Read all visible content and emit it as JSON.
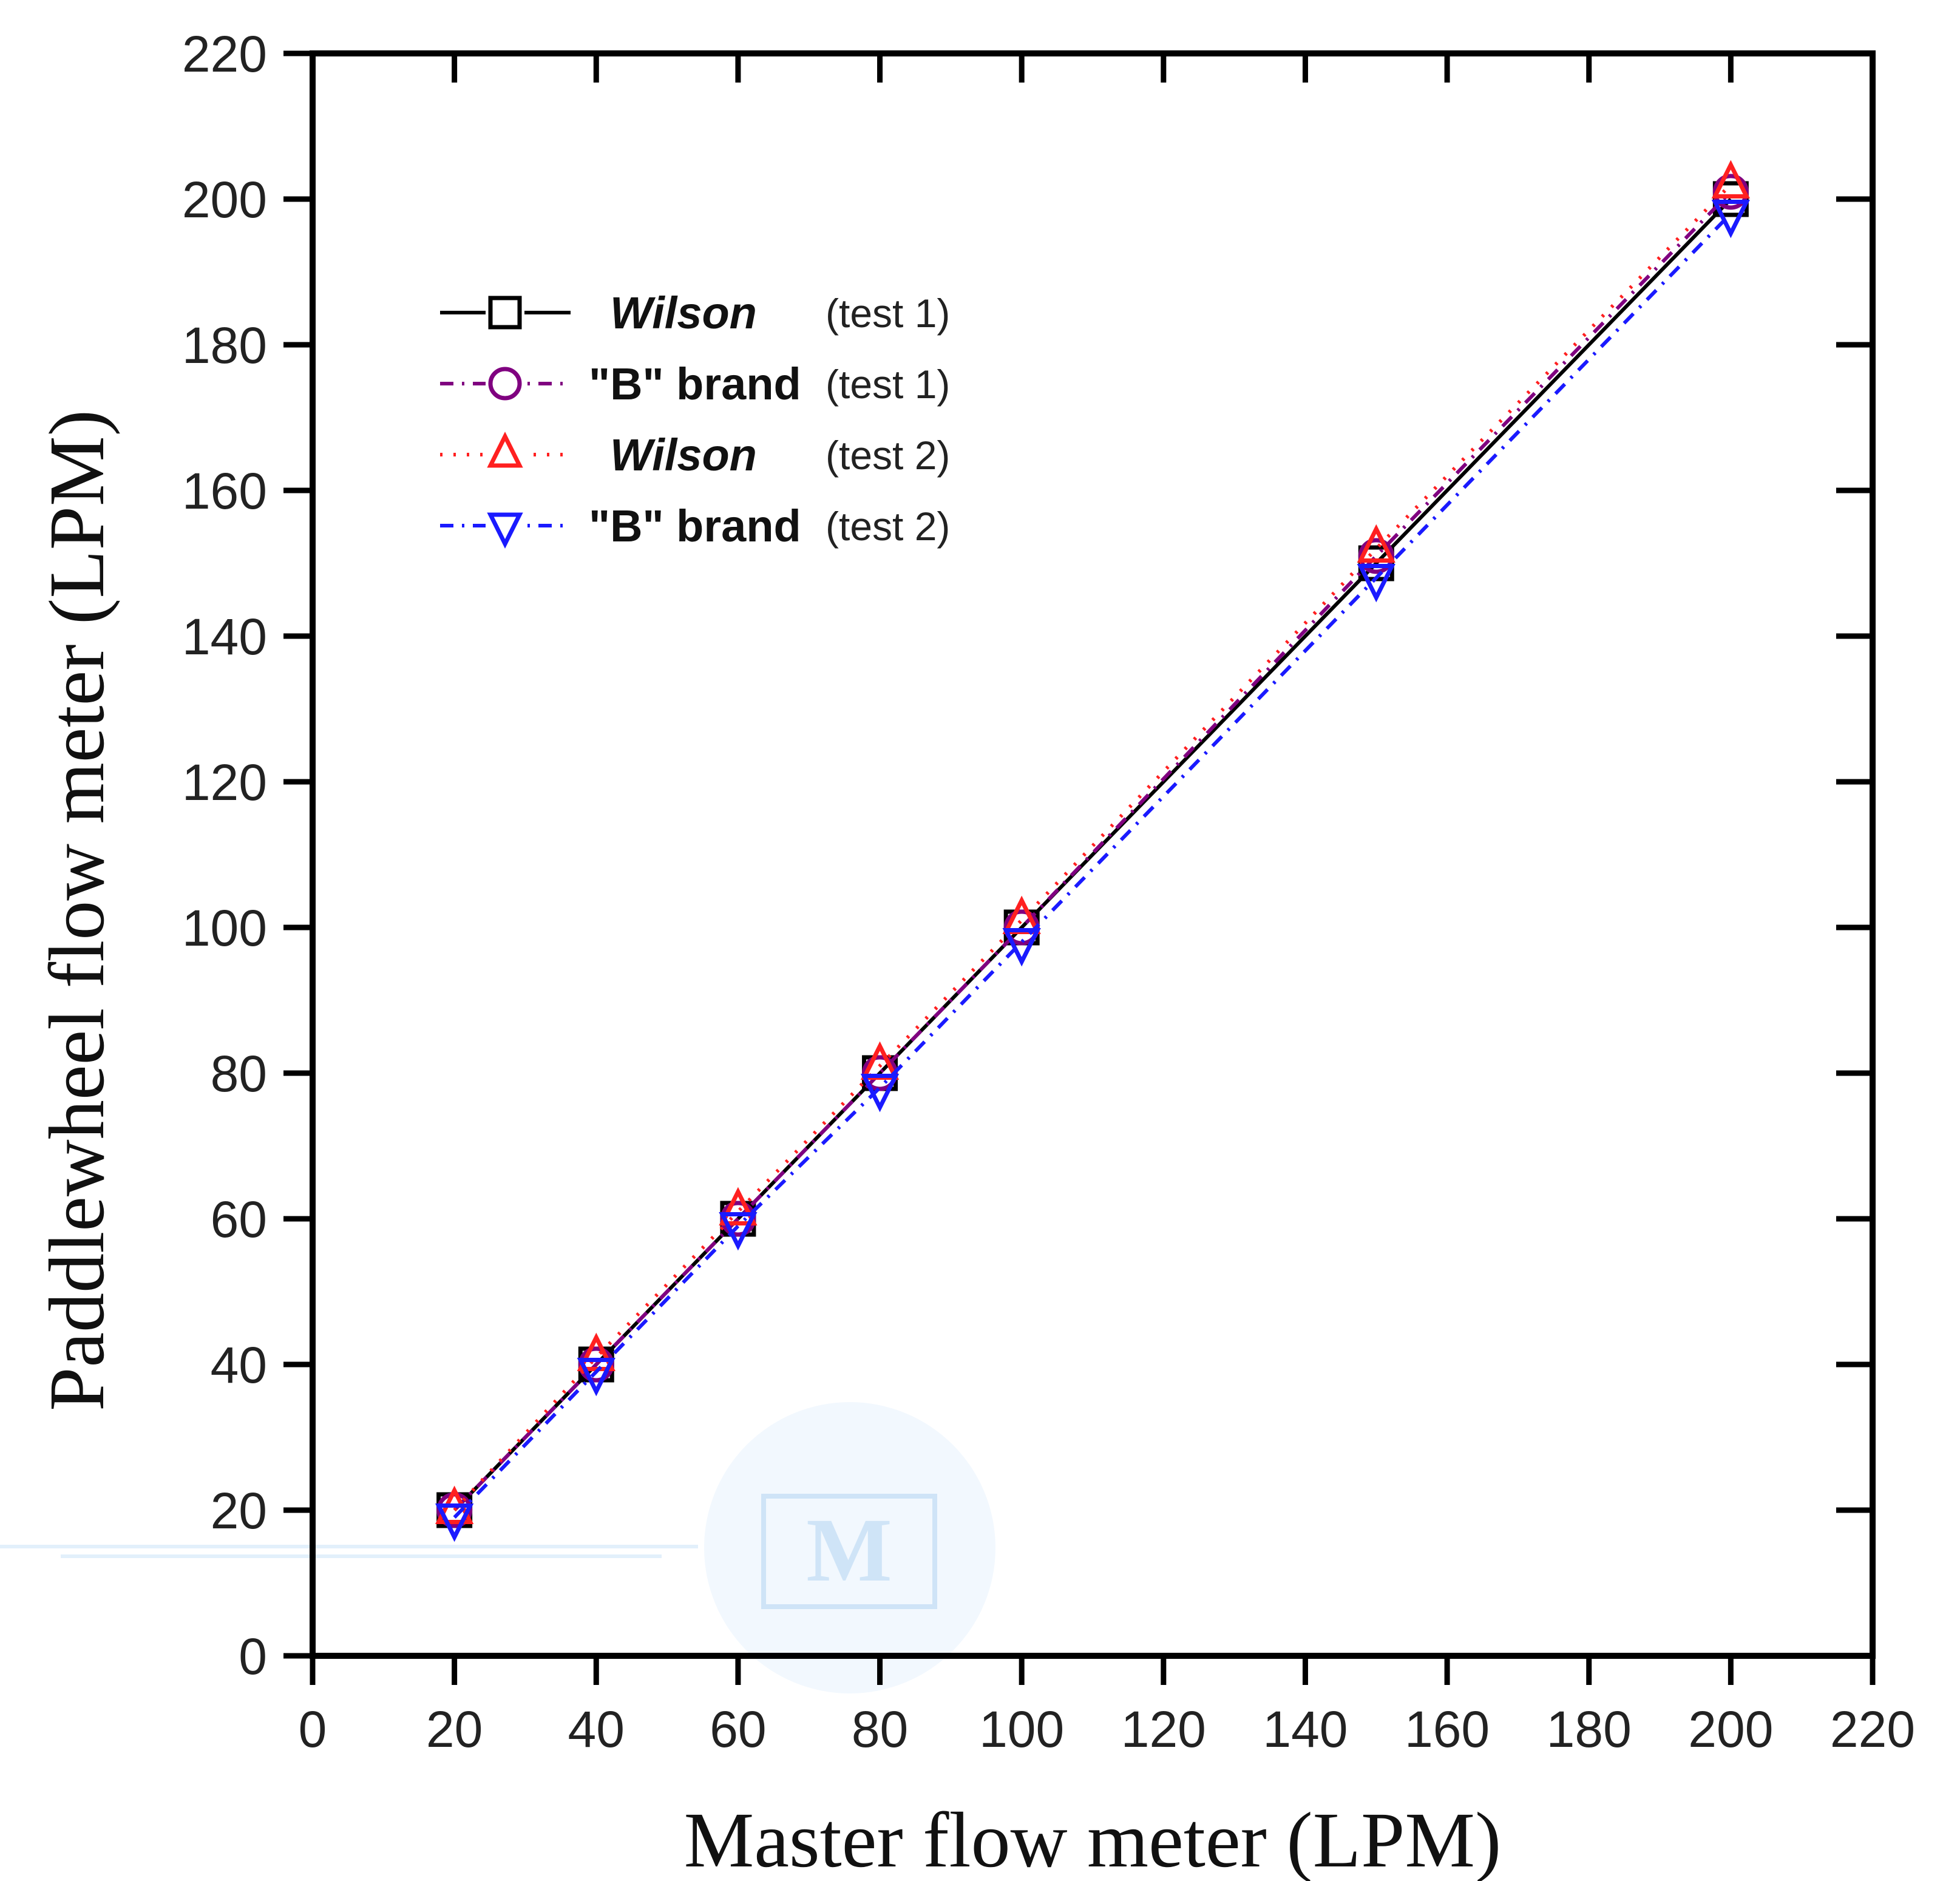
{
  "chart_data": {
    "type": "line",
    "title": "",
    "xlabel": "Master flow meter (LPM)",
    "ylabel": "Paddlewheel flow meter (LPM)",
    "xlim": [
      0,
      220
    ],
    "ylim": [
      0,
      220
    ],
    "xticks": [
      0,
      20,
      40,
      60,
      80,
      100,
      120,
      140,
      160,
      180,
      200,
      220
    ],
    "yticks": [
      0,
      20,
      40,
      60,
      80,
      100,
      120,
      140,
      160,
      180,
      200,
      220
    ],
    "grid": false,
    "legend_position": "top-left",
    "x": [
      20,
      40,
      60,
      80,
      100,
      150,
      200
    ],
    "series": [
      {
        "name": "Wilson",
        "test": "(test 1)",
        "italic": true,
        "marker": "square",
        "color": "#000000",
        "line": "solid",
        "values": [
          20,
          40,
          60,
          80,
          100,
          150,
          200
        ]
      },
      {
        "name": "\"B\" brand",
        "test": "(test 1)",
        "italic": false,
        "marker": "circle",
        "color": "#800080",
        "line": "dashdot",
        "values": [
          20,
          40,
          60,
          80,
          100,
          151,
          201
        ]
      },
      {
        "name": "Wilson",
        "test": "(test 2)",
        "italic": true,
        "marker": "triangle-up",
        "color": "#ff2020",
        "line": "dotted",
        "values": [
          20,
          41,
          61,
          81,
          101,
          152,
          202
        ]
      },
      {
        "name": "\"B\" brand",
        "test": "(test 2)",
        "italic": false,
        "marker": "triangle-down",
        "color": "#1a1aff",
        "line": "dashdot",
        "values": [
          19,
          39,
          59,
          78,
          98,
          148,
          198
        ]
      }
    ]
  },
  "watermark": {
    "text": "M",
    "color": "#cfe4f7"
  }
}
